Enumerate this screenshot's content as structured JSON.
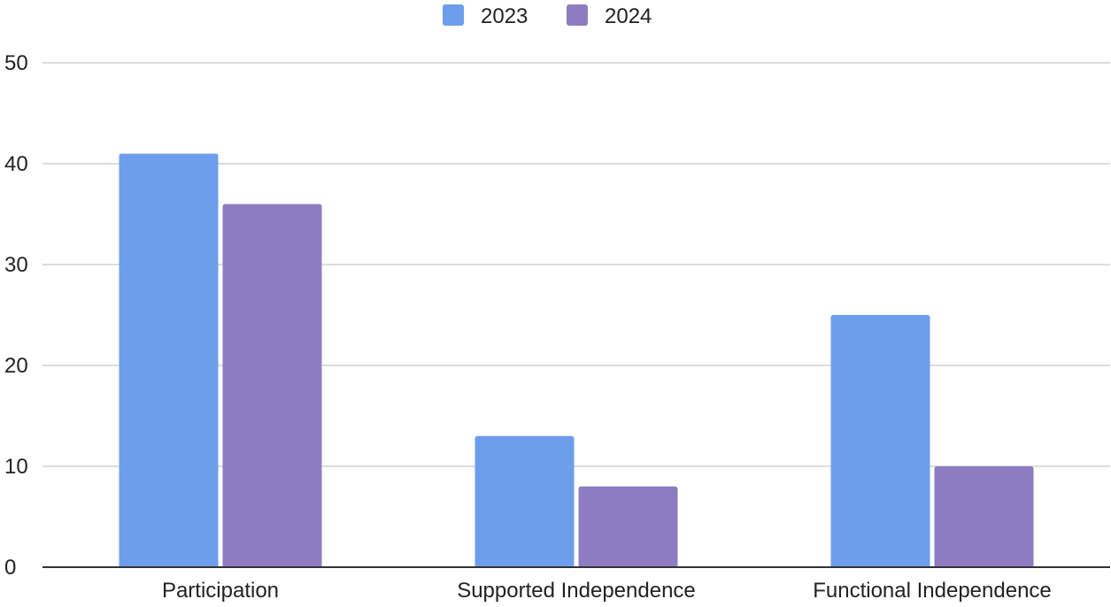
{
  "chart_data": {
    "type": "bar",
    "title": "",
    "xlabel": "",
    "ylabel": "",
    "categories": [
      "Participation",
      "Supported Independence",
      "Functional Independence"
    ],
    "series": [
      {
        "name": "2023",
        "color": "#6d9eeb",
        "values": [
          41,
          13,
          25
        ]
      },
      {
        "name": "2024",
        "color": "#8e7cc3",
        "values": [
          36,
          8,
          10
        ]
      }
    ],
    "ylim": [
      0,
      50
    ],
    "yticks": [
      "0",
      "10",
      "20",
      "30",
      "40",
      "50"
    ],
    "grid": true,
    "legend_position": "top-center"
  }
}
